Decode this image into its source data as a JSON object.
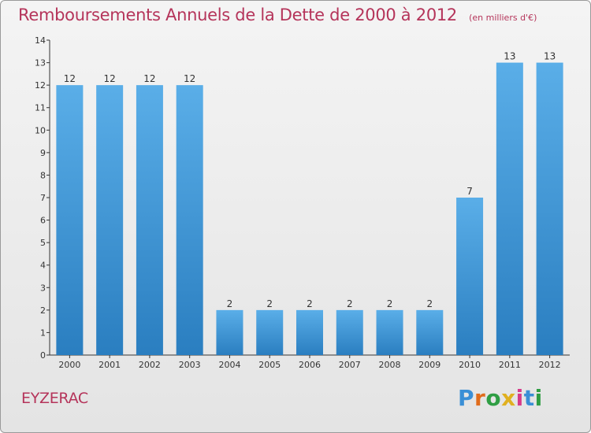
{
  "header": {
    "title": "Remboursements Annuels de la Dette de 2000 à 2012",
    "unit": "(en milliers d'€)"
  },
  "footer": {
    "commune": "EYZERAC",
    "logo_text": "Proxiti"
  },
  "colors": {
    "title": "#b5345a",
    "bar_top": "#5aaee8",
    "bar_bottom": "#2a7ec0",
    "axis": "#333333",
    "logo_letters": [
      "#3a8fd6",
      "#e06c1c",
      "#2f9e44",
      "#e0b020",
      "#d63a8a",
      "#3a8fd6",
      "#2f9e44"
    ]
  },
  "chart_data": {
    "type": "bar",
    "title": "Remboursements Annuels de la Dette de 2000 à 2012",
    "xlabel": "",
    "ylabel": "",
    "categories": [
      "2000",
      "2001",
      "2002",
      "2003",
      "2004",
      "2005",
      "2006",
      "2007",
      "2008",
      "2009",
      "2010",
      "2011",
      "2012"
    ],
    "values": [
      12,
      12,
      12,
      12,
      2,
      2,
      2,
      2,
      2,
      2,
      7,
      13,
      13
    ],
    "ylim": [
      0,
      14
    ],
    "yticks": [
      0,
      1,
      2,
      3,
      4,
      5,
      6,
      7,
      8,
      9,
      10,
      11,
      12,
      13,
      14
    ],
    "grid": false,
    "data_labels": true
  }
}
